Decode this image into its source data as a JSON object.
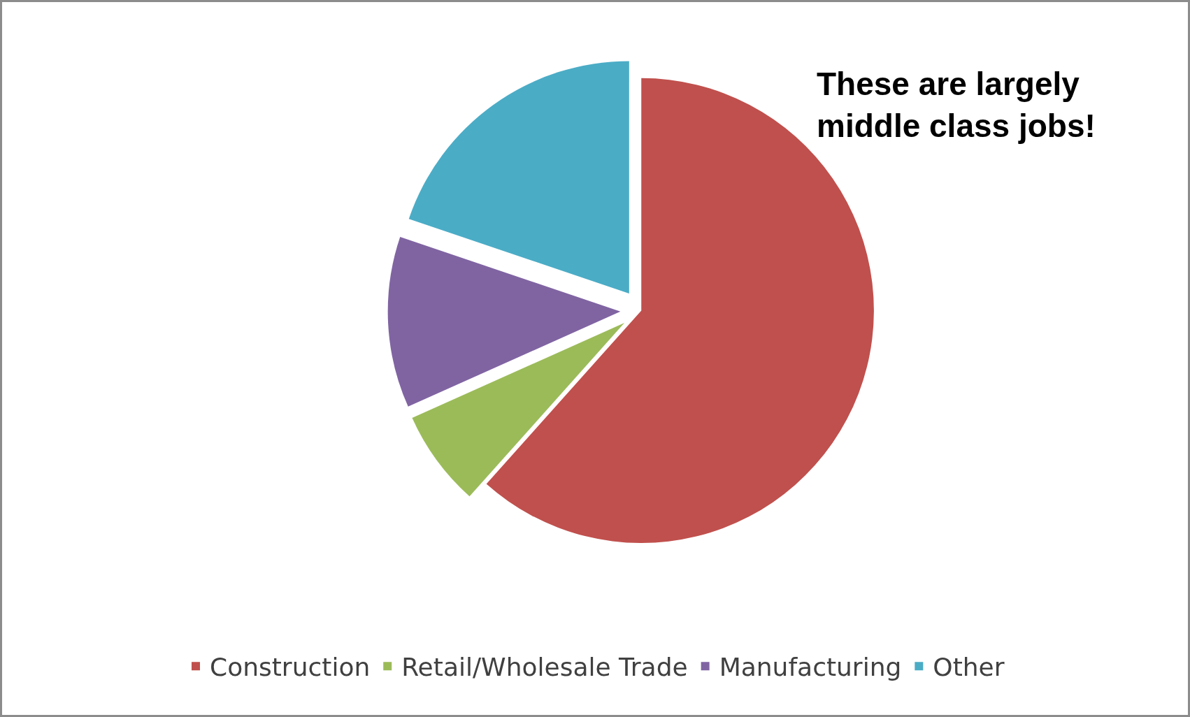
{
  "chart_data": {
    "type": "pie",
    "categories": [
      "Construction",
      "Retail/Wholesale Trade",
      "Manufacturing",
      "Other"
    ],
    "values": [
      61.6,
      6.7,
      11.9,
      19.8
    ],
    "colors": [
      "#c0504d",
      "#9bbb59",
      "#8064a2",
      "#4bacc6"
    ],
    "legend": "bottom",
    "annotations": [
      "These are largely middle class jobs!"
    ]
  }
}
